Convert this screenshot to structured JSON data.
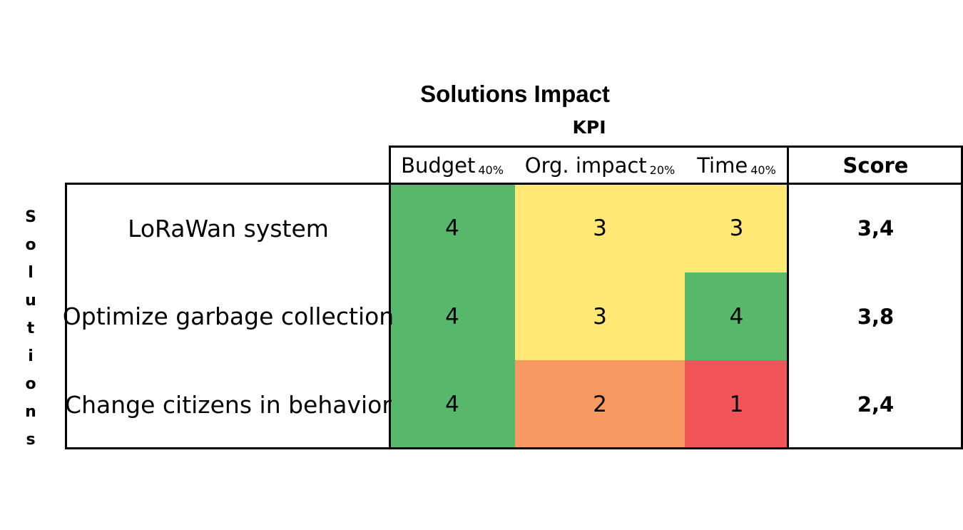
{
  "title": "Solutions Impact",
  "kpi_label": "KPI",
  "row_axis_label": [
    "S",
    "o",
    "l",
    "u",
    "t",
    "i",
    "o",
    "n",
    "s"
  ],
  "headers": [
    {
      "label": "Budget",
      "weight": "40%"
    },
    {
      "label": "Org. impact",
      "weight": "20%"
    },
    {
      "label": "Time",
      "weight": "40%"
    }
  ],
  "score_header": "Score",
  "rows": [
    {
      "solution": "LoRaWan system",
      "budget": "4",
      "org_impact": "3",
      "time": "3",
      "score": "3,4"
    },
    {
      "solution": "Optimize garbage collection",
      "budget": "4",
      "org_impact": "3",
      "time": "4",
      "score": "3,8"
    },
    {
      "solution": "Change citizens in behavior",
      "budget": "4",
      "org_impact": "2",
      "time": "1",
      "score": "2,4"
    }
  ],
  "colors": {
    "score_4": "#57b76a",
    "score_3": "#ffe873",
    "score_2": "#f69a62",
    "score_1": "#f15559"
  }
}
